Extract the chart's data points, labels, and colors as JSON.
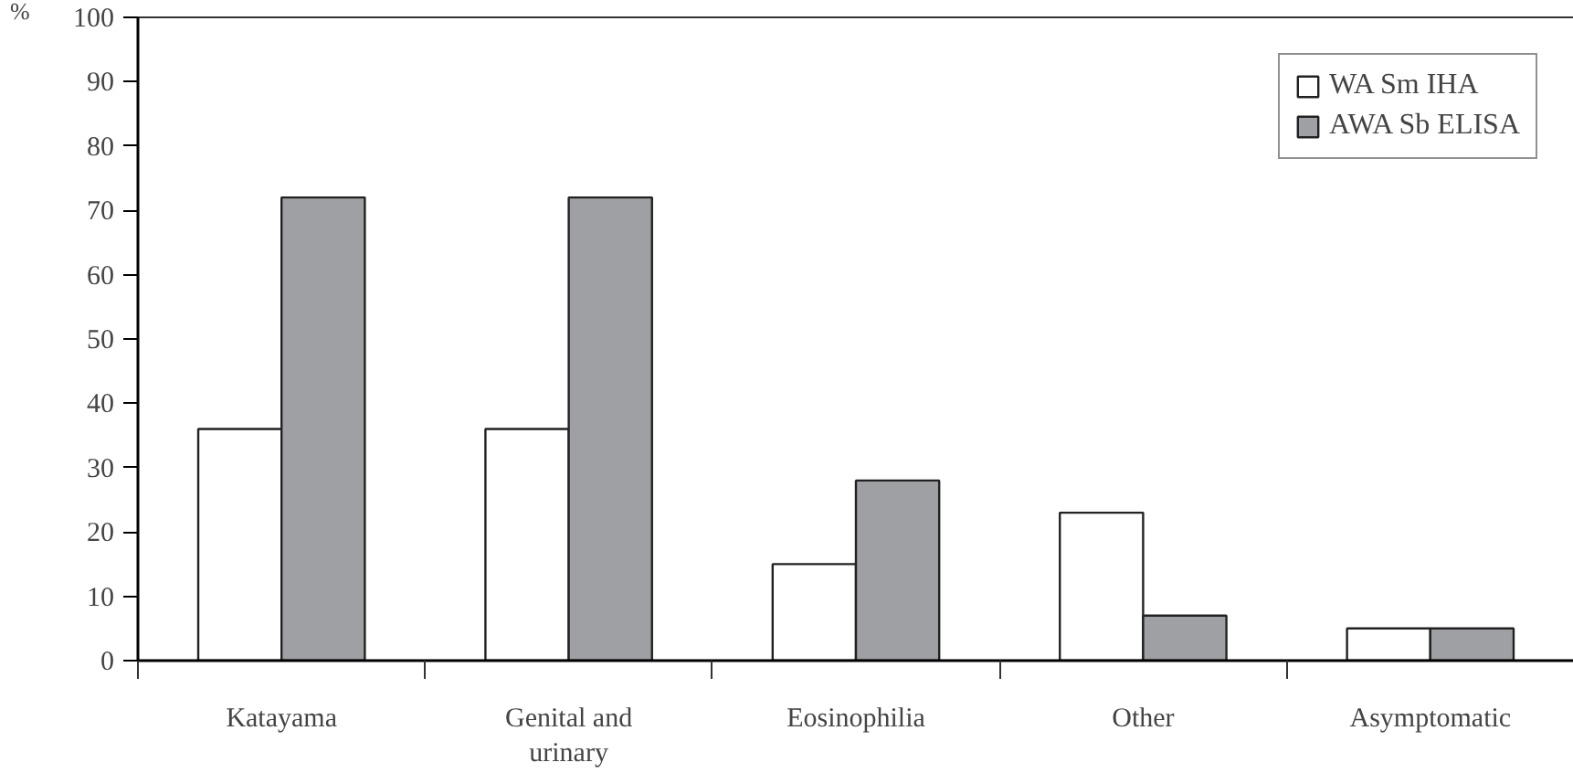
{
  "chart_data": {
    "type": "bar",
    "ylabel": "%",
    "categories": [
      "Katayama",
      "Genital and urinary",
      "Eosinophilia",
      "Other",
      "Asymptomatic"
    ],
    "series": [
      {
        "name": "WA Sm IHA",
        "color": "#ffffff",
        "values": [
          36,
          36,
          15,
          23,
          5
        ]
      },
      {
        "name": "AWA Sb ELISA",
        "color": "#9fa0a4",
        "values": [
          72,
          72,
          28,
          7,
          5
        ]
      }
    ],
    "ylim": [
      0,
      100
    ],
    "yticks": [
      0,
      10,
      20,
      30,
      40,
      50,
      60,
      70,
      80,
      90,
      100
    ],
    "grid": false,
    "legend": "top right"
  }
}
